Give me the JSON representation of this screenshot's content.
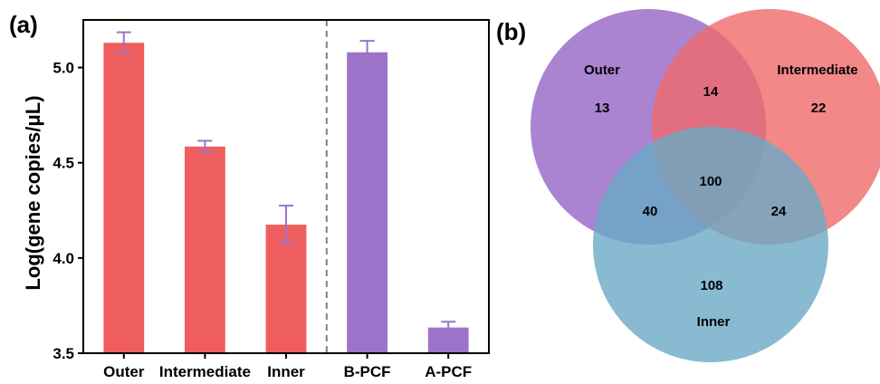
{
  "panels": {
    "a_label": "(a)",
    "b_label": "(b)"
  },
  "chart_data": [
    {
      "type": "bar",
      "title": "",
      "xlabel": "",
      "ylabel": "Log(gene copies/μL)",
      "ylim": [
        3.5,
        5.25
      ],
      "yticks": [
        3.5,
        4.0,
        4.5,
        5.0
      ],
      "ytick_labels": [
        "3.5",
        "4.0",
        "4.5",
        "5.0"
      ],
      "grid": false,
      "divider_after_index": 2,
      "categories": [
        "Outer",
        "Intermediate",
        "Inner",
        "B-PCF",
        "A-PCF"
      ],
      "values": [
        5.13,
        4.585,
        4.175,
        5.08,
        3.635
      ],
      "errors": [
        0.055,
        0.03,
        0.1,
        0.06,
        0.03
      ],
      "colors": [
        "#ef5e5e",
        "#ef5e5e",
        "#ef5e5e",
        "#9b74c9",
        "#9b74c9"
      ],
      "error_color": "#9b74c9"
    },
    {
      "type": "venn",
      "sets": [
        {
          "name": "Outer",
          "color": "#9b6fc9"
        },
        {
          "name": "Intermediate",
          "color": "#ef6a6a"
        },
        {
          "name": "Inner",
          "color": "#6aaac6"
        }
      ],
      "regions": {
        "outer_only": "13",
        "intermediate_only": "22",
        "inner_only": "108",
        "outer_intermediate": "14",
        "outer_inner": "40",
        "intermediate_inner": "24",
        "all": "100"
      }
    }
  ]
}
